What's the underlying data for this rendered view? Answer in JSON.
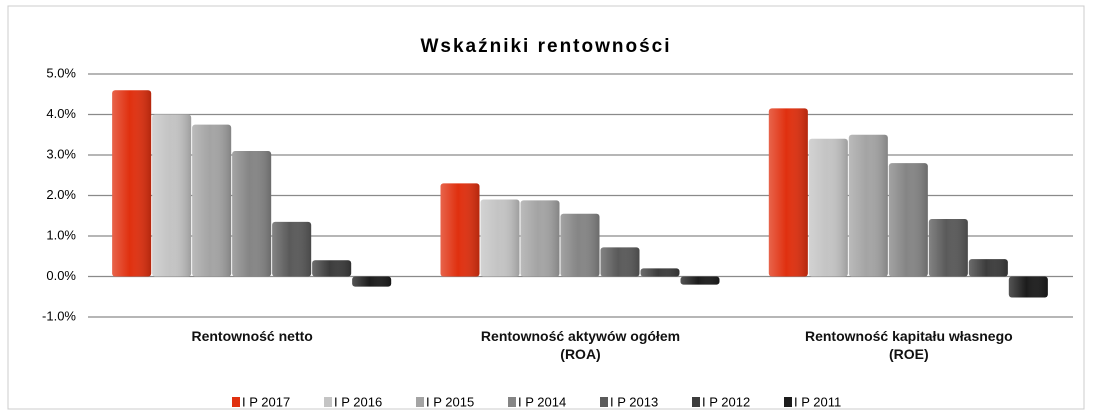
{
  "chart_data": {
    "type": "bar",
    "title": "Wskaźniki rentowności",
    "categories": [
      "Rentowność netto",
      "Rentowność aktywów ogółem (ROA)",
      "Rentowność kapitału własnego (ROE)"
    ],
    "series": [
      {
        "name": "I P 2017",
        "color": "#e0300f",
        "values": [
          4.6,
          2.3,
          4.15
        ]
      },
      {
        "name": "I P 2016",
        "color": "#c4c4c4",
        "values": [
          4.0,
          1.9,
          3.4
        ]
      },
      {
        "name": "I P 2015",
        "color": "#a4a4a4",
        "values": [
          3.75,
          1.88,
          3.5
        ]
      },
      {
        "name": "I P 2014",
        "color": "#858585",
        "values": [
          3.1,
          1.55,
          2.8
        ]
      },
      {
        "name": "I P 2013",
        "color": "#5a5a5a",
        "values": [
          1.35,
          0.72,
          1.42
        ]
      },
      {
        "name": "I P 2012",
        "color": "#3c3c3c",
        "values": [
          0.4,
          0.2,
          0.43
        ]
      },
      {
        "name": "I P 2011",
        "color": "#1c1c1c",
        "values": [
          -0.25,
          -0.2,
          -0.52
        ]
      }
    ],
    "ylim": [
      -1,
      5
    ],
    "yticks": [
      {
        "value": -1,
        "label": "-1.0%"
      },
      {
        "value": 0,
        "label": "0.0%"
      },
      {
        "value": 1,
        "label": "1.0%"
      },
      {
        "value": 2,
        "label": "2.0%"
      },
      {
        "value": 3,
        "label": "3.0%"
      },
      {
        "value": 4,
        "label": "4.0%"
      },
      {
        "value": 5,
        "label": "5.0%"
      }
    ],
    "grid": true,
    "legend": "bottom"
  }
}
